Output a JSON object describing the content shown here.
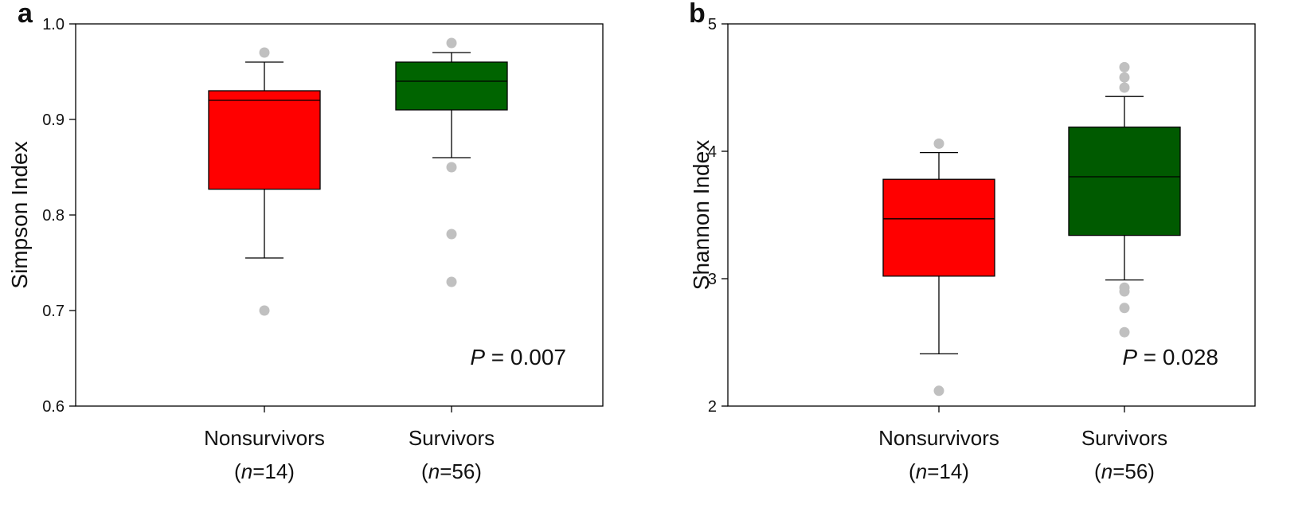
{
  "chart_data": [
    {
      "panel_label": "a",
      "type": "box",
      "ylabel": "Simpson Index",
      "ylim": [
        0.6,
        1.0
      ],
      "yticks": [
        "0.6",
        "0.7",
        "0.8",
        "0.9",
        "1.0"
      ],
      "p_prefix": "P",
      "p_rest": " = 0.007",
      "groups": [
        {
          "name": "Nonsurvivors",
          "n_prefix": "(",
          "n_italic": "n",
          "n_rest": "=14)",
          "color": "#ff0000",
          "whisker_low": 0.755,
          "q1": 0.827,
          "median": 0.92,
          "q3": 0.93,
          "whisker_high": 0.96,
          "outliers": [
            0.97,
            0.7
          ]
        },
        {
          "name": "Survivors",
          "n_prefix": "(",
          "n_italic": "n",
          "n_rest": "=56)",
          "color": "#006400",
          "whisker_low": 0.86,
          "q1": 0.91,
          "median": 0.94,
          "q3": 0.96,
          "whisker_high": 0.97,
          "outliers": [
            0.98,
            0.85,
            0.78,
            0.73
          ]
        }
      ]
    },
    {
      "panel_label": "b",
      "type": "box",
      "ylabel": "Shannon Index",
      "ylim": [
        2,
        5
      ],
      "yticks": [
        "2",
        "3",
        "4",
        "5"
      ],
      "p_prefix": "P",
      "p_rest": " = 0.028",
      "groups": [
        {
          "name": "Nonsurvivors",
          "n_prefix": "(",
          "n_italic": "n",
          "n_rest": "=14)",
          "color": "#ff0000",
          "whisker_low": 2.41,
          "q1": 3.02,
          "median": 3.47,
          "q3": 3.78,
          "whisker_high": 3.99,
          "outliers": [
            4.06,
            2.12
          ]
        },
        {
          "name": "Survivors",
          "n_prefix": "(",
          "n_italic": "n",
          "n_rest": "=56)",
          "color": "#005a00",
          "whisker_low": 2.99,
          "q1": 3.34,
          "median": 3.8,
          "q3": 4.19,
          "whisker_high": 4.43,
          "outliers": [
            4.66,
            4.58,
            4.5,
            2.93,
            2.9,
            2.77,
            2.58
          ]
        }
      ]
    }
  ],
  "outlier_color": "#c0c0c0"
}
